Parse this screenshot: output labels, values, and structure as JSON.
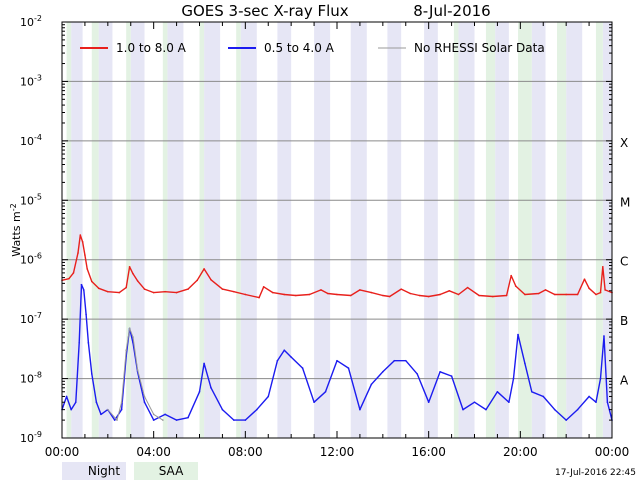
{
  "chart_data": {
    "type": "line",
    "title": "GOES 3-sec X-ray Flux",
    "date": "8-Jul-2016",
    "ylabel": "Watts m",
    "ylabel_sup": "-2",
    "y_scale": "log",
    "ylim": [
      1e-09,
      0.01
    ],
    "xlim_hours": [
      0,
      24
    ],
    "grid": "horizontal",
    "legend_placement": "top-left",
    "y_ticks": [
      {
        "exp": -2,
        "label_base": "10",
        "label_exp": "-2"
      },
      {
        "exp": -3,
        "label_base": "10",
        "label_exp": "-3"
      },
      {
        "exp": -4,
        "label_base": "10",
        "label_exp": "-4"
      },
      {
        "exp": -5,
        "label_base": "10",
        "label_exp": "-5"
      },
      {
        "exp": -6,
        "label_base": "10",
        "label_exp": "-6"
      },
      {
        "exp": -7,
        "label_base": "10",
        "label_exp": "-7"
      },
      {
        "exp": -8,
        "label_base": "10",
        "label_exp": "-8"
      },
      {
        "exp": -9,
        "label_base": "10",
        "label_exp": "-9"
      }
    ],
    "x_ticks": [
      {
        "hour": 0,
        "label": "00:00"
      },
      {
        "hour": 4,
        "label": "04:00"
      },
      {
        "hour": 8,
        "label": "08:00"
      },
      {
        "hour": 12,
        "label": "12:00"
      },
      {
        "hour": 16,
        "label": "16:00"
      },
      {
        "hour": 20,
        "label": "20:00"
      },
      {
        "hour": 24,
        "label": "00:00"
      }
    ],
    "flare_classes": [
      {
        "label": "X",
        "exp": -4
      },
      {
        "label": "M",
        "exp": -5
      },
      {
        "label": "C",
        "exp": -6
      },
      {
        "label": "B",
        "exp": -7
      },
      {
        "label": "A",
        "exp": -8
      }
    ],
    "legend": [
      {
        "label": "1.0 to 8.0 A",
        "color": "#e8201c"
      },
      {
        "label": "0.5 to 4.0 A",
        "color": "#1c1cf0"
      },
      {
        "label": "No RHESSI Solar Data",
        "color": "#999999"
      }
    ],
    "night_intervals_hours": [
      [
        0.4,
        0.9
      ],
      [
        1.6,
        2.2
      ],
      [
        3.0,
        3.6
      ],
      [
        4.6,
        5.3
      ],
      [
        6.2,
        6.9
      ],
      [
        7.8,
        8.5
      ],
      [
        9.4,
        10.0
      ],
      [
        11.0,
        11.7
      ],
      [
        12.6,
        13.3
      ],
      [
        14.2,
        14.8
      ],
      [
        15.8,
        16.4
      ],
      [
        17.3,
        18.0
      ],
      [
        18.9,
        19.5
      ],
      [
        20.5,
        21.1
      ],
      [
        22.0,
        22.7
      ],
      [
        23.6,
        24.0
      ]
    ],
    "saa_intervals_hours": [
      [
        0.2,
        0.4
      ],
      [
        1.3,
        1.6
      ],
      [
        2.8,
        3.0
      ],
      [
        4.4,
        4.6
      ],
      [
        6.0,
        6.2
      ],
      [
        7.6,
        7.8
      ],
      [
        17.1,
        17.3
      ],
      [
        18.5,
        18.9
      ],
      [
        19.9,
        20.5
      ],
      [
        21.6,
        22.0
      ],
      [
        23.3,
        23.6
      ]
    ],
    "series": [
      {
        "name": "1.0 to 8.0 A",
        "color": "#e8201c",
        "x_hours": [
          0,
          0.3,
          0.5,
          0.7,
          0.8,
          0.9,
          1.0,
          1.1,
          1.3,
          1.6,
          2.0,
          2.5,
          2.8,
          2.95,
          3.1,
          3.3,
          3.6,
          4.0,
          4.5,
          5.0,
          5.5,
          5.9,
          6.2,
          6.5,
          7.0,
          7.5,
          8.0,
          8.6,
          8.8,
          9.2,
          9.7,
          10.2,
          10.8,
          11.3,
          11.6,
          12.0,
          12.6,
          13.0,
          13.5,
          14.0,
          14.3,
          14.8,
          15.2,
          15.6,
          16.0,
          16.5,
          16.9,
          17.3,
          17.7,
          18.2,
          18.8,
          19.4,
          19.6,
          19.8,
          20.2,
          20.8,
          21.1,
          21.5,
          22.0,
          22.5,
          22.8,
          23.0,
          23.3,
          23.5,
          23.6,
          23.7,
          24.0
        ],
        "y": [
          4.5e-07,
          4.8e-07,
          6e-07,
          1.3e-06,
          2.6e-06,
          2e-06,
          1.2e-06,
          7e-07,
          4.3e-07,
          3.3e-07,
          2.9e-07,
          2.8e-07,
          3.4e-07,
          7.6e-07,
          5.8e-07,
          4.4e-07,
          3.2e-07,
          2.8e-07,
          2.9e-07,
          2.8e-07,
          3.2e-07,
          4.5e-07,
          7e-07,
          4.6e-07,
          3.2e-07,
          2.9e-07,
          2.6e-07,
          2.3e-07,
          3.5e-07,
          2.8e-07,
          2.6e-07,
          2.5e-07,
          2.6e-07,
          3.1e-07,
          2.7e-07,
          2.6e-07,
          2.5e-07,
          3.1e-07,
          2.8e-07,
          2.5e-07,
          2.4e-07,
          3.2e-07,
          2.7e-07,
          2.5e-07,
          2.4e-07,
          2.6e-07,
          3e-07,
          2.6e-07,
          3.4e-07,
          2.5e-07,
          2.4e-07,
          2.5e-07,
          5.4e-07,
          3.6e-07,
          2.6e-07,
          2.7e-07,
          3.1e-07,
          2.6e-07,
          2.6e-07,
          2.6e-07,
          4.7e-07,
          3.3e-07,
          2.6e-07,
          2.8e-07,
          7.6e-07,
          3.1e-07,
          2.8e-07
        ]
      },
      {
        "name": "0.5 to 4.0 A",
        "color": "#1c1cf0",
        "x_hours": [
          0,
          0.2,
          0.4,
          0.6,
          0.75,
          0.85,
          0.95,
          1.05,
          1.15,
          1.3,
          1.5,
          1.7,
          2.0,
          2.3,
          2.6,
          2.8,
          2.95,
          3.1,
          3.3,
          3.6,
          4.0,
          4.5,
          5.0,
          5.5,
          6.0,
          6.2,
          6.5,
          7.0,
          7.5,
          8.0,
          8.5,
          9.0,
          9.4,
          9.7,
          10.0,
          10.5,
          11.0,
          11.5,
          12.0,
          12.5,
          13.0,
          13.5,
          14.0,
          14.5,
          15.0,
          15.5,
          16.0,
          16.5,
          17.0,
          17.5,
          18.0,
          18.5,
          19.0,
          19.5,
          19.7,
          19.9,
          20.2,
          20.5,
          21.0,
          21.5,
          22.0,
          22.5,
          23.0,
          23.3,
          23.5,
          23.65,
          23.8,
          24.0
        ],
        "y": [
          3e-09,
          5e-09,
          3e-09,
          4e-09,
          4e-08,
          3.8e-07,
          3.1e-07,
          1.2e-07,
          4e-08,
          1.2e-08,
          4e-09,
          2.5e-09,
          3e-09,
          2e-09,
          3e-09,
          2.4e-08,
          7e-08,
          4e-08,
          1.3e-08,
          4e-09,
          2e-09,
          2.5e-09,
          2e-09,
          2.2e-09,
          6e-09,
          1.8e-08,
          7e-09,
          3e-09,
          2e-09,
          2e-09,
          3e-09,
          5e-09,
          2e-08,
          3e-08,
          2.3e-08,
          1.5e-08,
          4e-09,
          6e-09,
          2e-08,
          1.5e-08,
          3e-09,
          8e-09,
          1.3e-08,
          2e-08,
          2e-08,
          1.2e-08,
          4e-09,
          1.3e-08,
          1.1e-08,
          3e-09,
          4e-09,
          3e-09,
          6e-09,
          4e-09,
          1e-08,
          5.5e-08,
          1.8e-08,
          6e-09,
          5e-09,
          3e-09,
          2e-09,
          3e-09,
          5e-09,
          4e-09,
          1e-08,
          5.2e-08,
          4e-09,
          2e-09
        ]
      },
      {
        "name": "No RHESSI Solar Data",
        "color": "#999999",
        "x_hours": [
          2.0,
          2.4,
          2.6,
          2.8,
          2.95,
          3.1,
          3.3,
          3.6,
          4.0,
          4.4
        ],
        "y": [
          3e-09,
          2e-09,
          4e-09,
          3e-08,
          7e-08,
          5e-08,
          1.4e-08,
          5e-09,
          2.5e-09,
          2e-09
        ]
      }
    ]
  },
  "footer": {
    "night_label": "Night",
    "saa_label": "SAA",
    "timestamp": "17-Jul-2016 22:45",
    "night_color": "#e6e6f5",
    "saa_color": "#e3f2e3"
  }
}
